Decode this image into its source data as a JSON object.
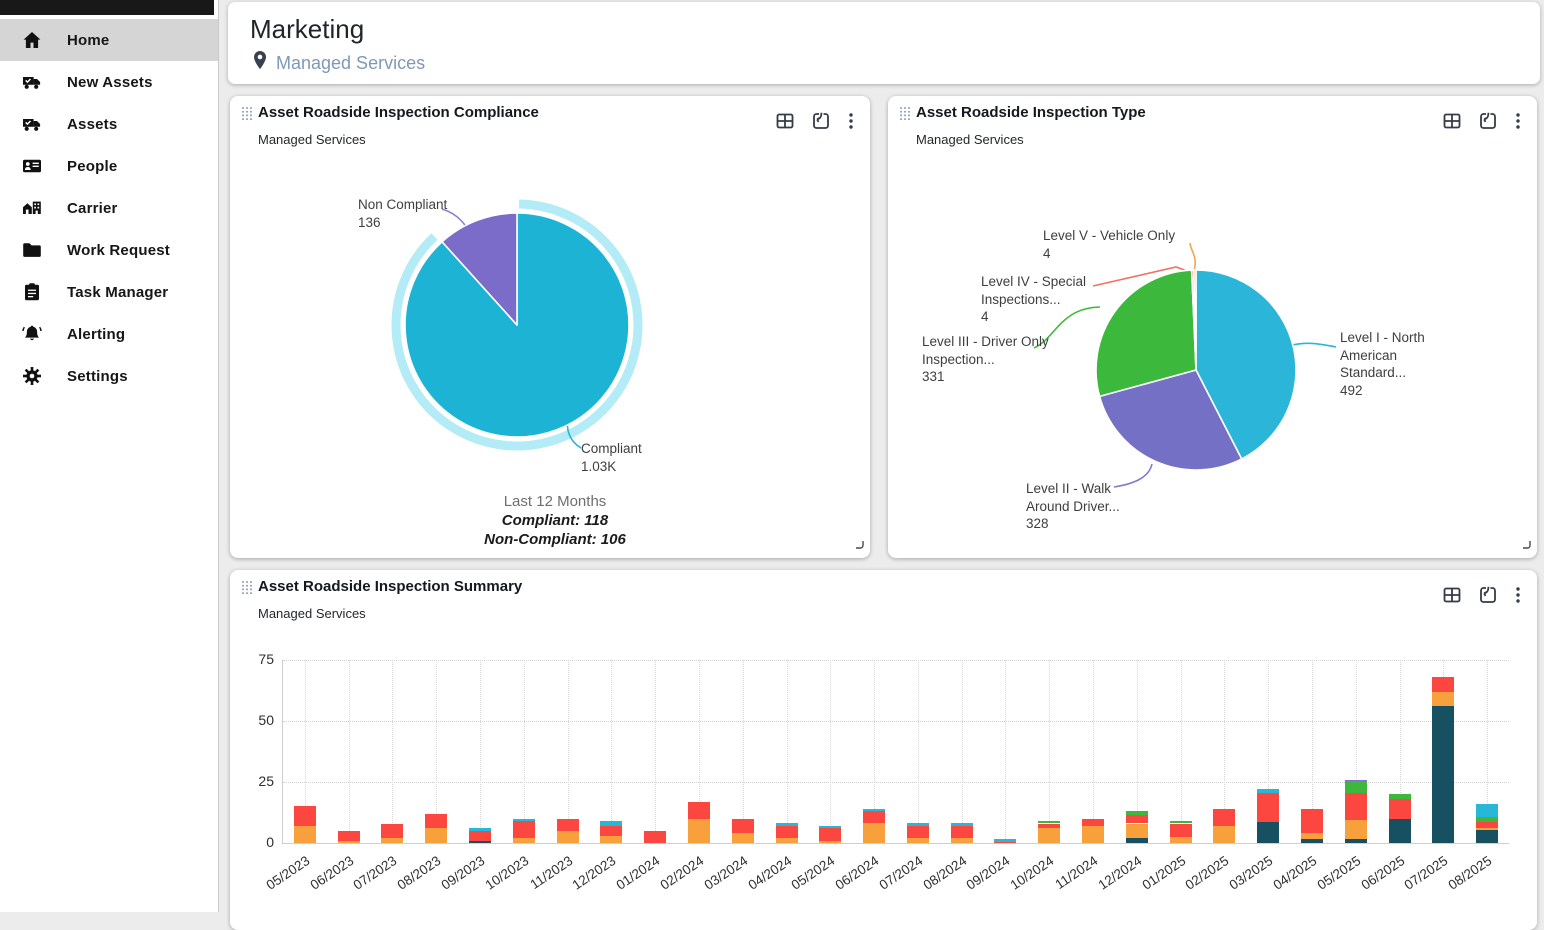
{
  "header": {
    "title": "Marketing",
    "location": "Managed Services"
  },
  "sidebar": {
    "items": [
      {
        "label": "Home",
        "icon": "home-icon",
        "active": true
      },
      {
        "label": "New Assets",
        "icon": "truck-check-icon",
        "active": false
      },
      {
        "label": "Assets",
        "icon": "truck-check-icon",
        "active": false
      },
      {
        "label": "People",
        "icon": "id-card-icon",
        "active": false
      },
      {
        "label": "Carrier",
        "icon": "carrier-buildings-icon",
        "active": false
      },
      {
        "label": "Work Request",
        "icon": "folder-icon",
        "active": false
      },
      {
        "label": "Task Manager",
        "icon": "clipboard-icon",
        "active": false
      },
      {
        "label": "Alerting",
        "icon": "bell-icon",
        "active": false
      },
      {
        "label": "Settings",
        "icon": "gear-icon",
        "active": false
      }
    ]
  },
  "card_actions": {
    "table": "table-view",
    "export": "export",
    "menu": "more-options"
  },
  "chart_data": [
    {
      "type": "pie",
      "title": "Asset Roadside Inspection Compliance",
      "subtitle": "Managed Services",
      "slices": [
        {
          "label": "Compliant",
          "value": 1030,
          "display": "1.03K",
          "color": "#1db3d4",
          "label_lines": [
            "Compliant",
            "1.03K"
          ],
          "highlight_ring": true,
          "ring_color": "#b3ebf7"
        },
        {
          "label": "Non Compliant",
          "value": 136,
          "display": "136",
          "color": "#7a6cc8",
          "label_lines": [
            "Non Compliant",
            "136"
          ]
        }
      ],
      "footer": {
        "period": "Last 12 Months",
        "line1": "Compliant: 118",
        "line2": "Non-Compliant: 106"
      }
    },
    {
      "type": "pie",
      "title": "Asset Roadside Inspection Type",
      "subtitle": "Managed Services",
      "slices": [
        {
          "label": "Level I - North American Standard...",
          "value": 492,
          "display": "492",
          "color": "#2bb5d9",
          "label_lines": [
            "Level I - North",
            "American",
            "Standard...",
            "492"
          ]
        },
        {
          "label": "Level II - Walk Around Driver...",
          "value": 328,
          "display": "328",
          "color": "#7470c5",
          "label_lines": [
            "Level II - Walk",
            "Around Driver...",
            "328"
          ]
        },
        {
          "label": "Level III - Driver Only Inspection...",
          "value": 331,
          "display": "331",
          "color": "#3cb93c",
          "label_lines": [
            "Level III - Driver Only",
            "Inspection...",
            "331"
          ]
        },
        {
          "label": "Level IV - Special Inspections...",
          "value": 4,
          "display": "4",
          "color": "#f2705f",
          "label_lines": [
            "Level IV - Special",
            "Inspections...",
            "4"
          ]
        },
        {
          "label": "Level V - Vehicle Only",
          "value": 4,
          "display": "4",
          "color": "#f5a54c",
          "label_lines": [
            "Level V - Vehicle Only",
            "4"
          ]
        }
      ]
    },
    {
      "type": "bar",
      "stacked": true,
      "title": "Asset Roadside Inspection Summary",
      "subtitle": "Managed Services",
      "categories": [
        "05/2023",
        "06/2023",
        "07/2023",
        "08/2023",
        "09/2023",
        "10/2023",
        "11/2023",
        "12/2023",
        "01/2024",
        "02/2024",
        "03/2024",
        "04/2024",
        "05/2024",
        "06/2024",
        "07/2024",
        "08/2024",
        "09/2024",
        "10/2024",
        "11/2024",
        "12/2024",
        "01/2025",
        "02/2025",
        "03/2025",
        "04/2025",
        "05/2025",
        "06/2025",
        "07/2025",
        "08/2025"
      ],
      "series": [
        {
          "name": "dark-teal",
          "color": "#175060",
          "values": [
            0,
            0,
            0,
            0,
            1,
            0,
            0,
            0,
            0,
            0,
            0,
            0,
            0,
            0,
            0,
            0,
            0,
            0,
            0,
            2,
            0,
            0,
            8.5,
            1.5,
            1.5,
            10,
            56,
            5.5
          ]
        },
        {
          "name": "orange",
          "color": "#f8a13c",
          "values": [
            7,
            1,
            2,
            6,
            0,
            2,
            5,
            3,
            0,
            10,
            4,
            2,
            1,
            8,
            2,
            2,
            0,
            6,
            7,
            6,
            2.5,
            7,
            0,
            2.5,
            8,
            0,
            6,
            0.5
          ]
        },
        {
          "name": "red",
          "color": "#fb4740",
          "values": [
            8,
            4,
            6,
            6,
            4,
            7,
            5,
            4,
            5,
            7,
            6,
            5,
            5,
            5,
            5,
            5,
            0.5,
            2,
            3,
            3.5,
            5.5,
            7,
            12,
            10,
            11,
            8,
            6,
            2.5
          ]
        },
        {
          "name": "green",
          "color": "#3db83c",
          "values": [
            0,
            0,
            0,
            0,
            0,
            0,
            0,
            0,
            0,
            0,
            0,
            0,
            0,
            0,
            0,
            0,
            0,
            1,
            0,
            1.5,
            1,
            0,
            0,
            0,
            5,
            2,
            0,
            2
          ]
        },
        {
          "name": "blue",
          "color": "#29b7d8",
          "values": [
            0,
            0,
            0,
            0,
            1,
            1,
            0,
            2,
            0,
            0,
            0,
            1,
            1,
            1,
            1,
            1,
            1,
            0,
            0,
            0,
            0,
            0,
            1.5,
            0,
            0,
            0,
            0,
            5.5
          ]
        },
        {
          "name": "purple",
          "color": "#7f6fd0",
          "values": [
            0,
            0,
            0,
            0,
            0,
            0,
            0,
            0,
            0,
            0,
            0,
            0,
            0,
            0,
            0,
            0,
            0,
            0,
            0,
            0,
            0,
            0,
            0,
            0,
            0.5,
            0,
            0,
            0
          ]
        }
      ],
      "ylim": [
        0,
        75
      ],
      "yticks": [
        0,
        25,
        50,
        75
      ],
      "grid": "dotted"
    }
  ]
}
